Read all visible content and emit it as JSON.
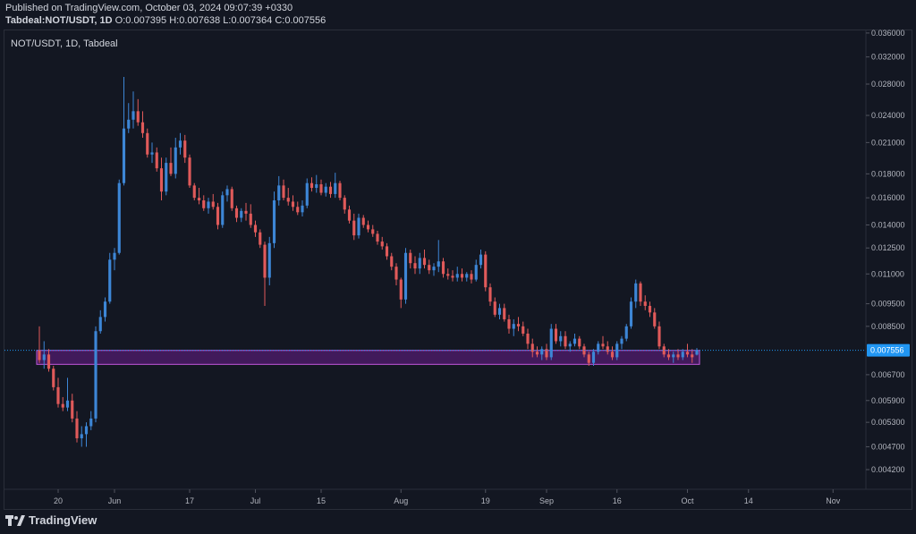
{
  "header": {
    "published": "Published on TradingView.com, October 03, 2024 09:07:39 +0330",
    "symbol": "Tabdeal:NOT/USDT, 1D",
    "o_label": "O:",
    "o_value": "0.007395",
    "h_label": "H:",
    "h_value": "0.007638",
    "l_label": "L:",
    "l_value": "0.007364",
    "c_label": "C:",
    "c_value": "0.007556"
  },
  "chart_label": "NOT/USDT, 1D, Tabdeal",
  "footer": {
    "brand": "TradingView"
  },
  "colors": {
    "background": "#131722",
    "up": "#2962ff",
    "up_body": "#3d86d6",
    "down": "#e05a5a",
    "zone_fill": "#7b1fa2",
    "zone_stroke": "#c158dc",
    "price_line": "#2196f3",
    "grid": "#2a2e39"
  },
  "chart_data": {
    "type": "candlestick",
    "symbol": "NOT/USDT",
    "interval": "1D",
    "exchange": "Tabdeal",
    "last_price": "0.007556",
    "y_scale": "log",
    "y_ticks": [
      "0.036000",
      "0.032000",
      "0.028000",
      "0.024000",
      "0.021000",
      "0.018000",
      "0.016000",
      "0.014000",
      "0.012500",
      "0.011000",
      "0.009500",
      "0.008500",
      "0.006700",
      "0.005900",
      "0.005300",
      "0.004700",
      "0.004200"
    ],
    "x_ticks": [
      "20",
      "Jun",
      "17",
      "Jul",
      "15",
      "Aug",
      "19",
      "Sep",
      "16",
      "Oct",
      "14",
      "Nov"
    ],
    "x_tick_dates": [
      "2024-05-20",
      "2024-06-01",
      "2024-06-17",
      "2024-07-01",
      "2024-07-15",
      "2024-08-01",
      "2024-08-19",
      "2024-09-01",
      "2024-09-16",
      "2024-10-01",
      "2024-10-14",
      "2024-11-01"
    ],
    "zone": {
      "from": "2024-05-16",
      "to": "2024-10-03",
      "top": 0.00755,
      "bottom": 0.00705
    },
    "candles": [
      [
        "2024-05-16",
        0.00755,
        0.0085,
        0.0071,
        0.0072
      ],
      [
        "2024-05-17",
        0.0072,
        0.0079,
        0.0069,
        0.0074
      ],
      [
        "2024-05-18",
        0.0074,
        0.0076,
        0.0068,
        0.0069
      ],
      [
        "2024-05-19",
        0.0069,
        0.007,
        0.0062,
        0.0063
      ],
      [
        "2024-05-20",
        0.0063,
        0.0066,
        0.0057,
        0.0058
      ],
      [
        "2024-05-21",
        0.0058,
        0.006,
        0.0056,
        0.0057
      ],
      [
        "2024-05-22",
        0.0057,
        0.0066,
        0.0056,
        0.0059
      ],
      [
        "2024-05-23",
        0.0059,
        0.0061,
        0.0053,
        0.0054
      ],
      [
        "2024-05-24",
        0.0054,
        0.0056,
        0.0048,
        0.0049
      ],
      [
        "2024-05-25",
        0.0049,
        0.0052,
        0.0047,
        0.005
      ],
      [
        "2024-05-26",
        0.005,
        0.0053,
        0.0047,
        0.0052
      ],
      [
        "2024-05-27",
        0.0052,
        0.0056,
        0.0051,
        0.0054
      ],
      [
        "2024-05-28",
        0.0054,
        0.0085,
        0.0053,
        0.0083
      ],
      [
        "2024-05-29",
        0.0083,
        0.0092,
        0.0082,
        0.0089
      ],
      [
        "2024-05-30",
        0.0089,
        0.0098,
        0.0087,
        0.0096
      ],
      [
        "2024-05-31",
        0.0096,
        0.0122,
        0.0095,
        0.0118
      ],
      [
        "2024-06-01",
        0.0118,
        0.0125,
        0.0112,
        0.0122
      ],
      [
        "2024-06-02",
        0.0122,
        0.0175,
        0.0121,
        0.0172
      ],
      [
        "2024-06-03",
        0.0172,
        0.029,
        0.017,
        0.0225
      ],
      [
        "2024-06-04",
        0.0225,
        0.0255,
        0.022,
        0.0235
      ],
      [
        "2024-06-05",
        0.0235,
        0.027,
        0.0225,
        0.0245
      ],
      [
        "2024-06-06",
        0.0245,
        0.026,
        0.0228,
        0.0232
      ],
      [
        "2024-06-07",
        0.0232,
        0.0245,
        0.0215,
        0.022
      ],
      [
        "2024-06-08",
        0.022,
        0.0225,
        0.0195,
        0.0198
      ],
      [
        "2024-06-09",
        0.0198,
        0.021,
        0.019,
        0.02
      ],
      [
        "2024-06-10",
        0.02,
        0.0205,
        0.0182,
        0.0185
      ],
      [
        "2024-06-11",
        0.0185,
        0.0195,
        0.0158,
        0.0165
      ],
      [
        "2024-06-12",
        0.0165,
        0.0195,
        0.0162,
        0.019
      ],
      [
        "2024-06-13",
        0.019,
        0.0205,
        0.0178,
        0.018
      ],
      [
        "2024-06-14",
        0.018,
        0.0215,
        0.0176,
        0.0205
      ],
      [
        "2024-06-15",
        0.0205,
        0.022,
        0.0198,
        0.0212
      ],
      [
        "2024-06-16",
        0.0212,
        0.0218,
        0.019,
        0.0195
      ],
      [
        "2024-06-17",
        0.0195,
        0.0198,
        0.0168,
        0.017
      ],
      [
        "2024-06-18",
        0.017,
        0.0172,
        0.0158,
        0.016
      ],
      [
        "2024-06-19",
        0.016,
        0.0168,
        0.0155,
        0.0158
      ],
      [
        "2024-06-20",
        0.0158,
        0.0162,
        0.015,
        0.0152
      ],
      [
        "2024-06-21",
        0.0152,
        0.016,
        0.0148,
        0.0157
      ],
      [
        "2024-06-22",
        0.0157,
        0.0163,
        0.0151,
        0.0153
      ],
      [
        "2024-06-23",
        0.0153,
        0.0156,
        0.0137,
        0.014
      ],
      [
        "2024-06-24",
        0.014,
        0.0165,
        0.0138,
        0.0162
      ],
      [
        "2024-06-25",
        0.0162,
        0.017,
        0.0157,
        0.0167
      ],
      [
        "2024-06-26",
        0.0167,
        0.0169,
        0.015,
        0.0152
      ],
      [
        "2024-06-27",
        0.0152,
        0.0154,
        0.0142,
        0.0145
      ],
      [
        "2024-06-28",
        0.0145,
        0.0152,
        0.0142,
        0.015
      ],
      [
        "2024-06-29",
        0.015,
        0.0156,
        0.0143,
        0.0148
      ],
      [
        "2024-06-30",
        0.0148,
        0.0155,
        0.0138,
        0.014
      ],
      [
        "2024-07-01",
        0.014,
        0.0143,
        0.0132,
        0.0135
      ],
      [
        "2024-07-02",
        0.0135,
        0.0137,
        0.0125,
        0.0127
      ],
      [
        "2024-07-03",
        0.0127,
        0.0129,
        0.0094,
        0.0108
      ],
      [
        "2024-07-04",
        0.0108,
        0.0132,
        0.0104,
        0.0128
      ],
      [
        "2024-07-05",
        0.0128,
        0.0165,
        0.0125,
        0.0158
      ],
      [
        "2024-07-06",
        0.0158,
        0.0178,
        0.0154,
        0.017
      ],
      [
        "2024-07-07",
        0.017,
        0.0175,
        0.0158,
        0.016
      ],
      [
        "2024-07-08",
        0.016,
        0.0168,
        0.0154,
        0.0157
      ],
      [
        "2024-07-09",
        0.0157,
        0.0162,
        0.015,
        0.0153
      ],
      [
        "2024-07-10",
        0.0153,
        0.0157,
        0.0147,
        0.0149
      ],
      [
        "2024-07-11",
        0.0149,
        0.0158,
        0.0146,
        0.0154
      ],
      [
        "2024-07-12",
        0.0154,
        0.0176,
        0.0152,
        0.0172
      ],
      [
        "2024-07-13",
        0.0172,
        0.0177,
        0.0165,
        0.0168
      ],
      [
        "2024-07-14",
        0.0168,
        0.0179,
        0.0164,
        0.0171
      ],
      [
        "2024-07-15",
        0.0171,
        0.0175,
        0.0162,
        0.0164
      ],
      [
        "2024-07-16",
        0.0164,
        0.0172,
        0.0161,
        0.0169
      ],
      [
        "2024-07-17",
        0.0169,
        0.0173,
        0.016,
        0.0163
      ],
      [
        "2024-07-18",
        0.0163,
        0.0181,
        0.016,
        0.0172
      ],
      [
        "2024-07-19",
        0.0172,
        0.0174,
        0.0158,
        0.016
      ],
      [
        "2024-07-20",
        0.016,
        0.0162,
        0.0148,
        0.0151
      ],
      [
        "2024-07-21",
        0.0151,
        0.0154,
        0.0141,
        0.0143
      ],
      [
        "2024-07-22",
        0.0143,
        0.0148,
        0.013,
        0.0133
      ],
      [
        "2024-07-23",
        0.0133,
        0.0148,
        0.0131,
        0.0145
      ],
      [
        "2024-07-24",
        0.0145,
        0.0147,
        0.0138,
        0.014
      ],
      [
        "2024-07-25",
        0.014,
        0.0143,
        0.0135,
        0.0137
      ],
      [
        "2024-07-26",
        0.0137,
        0.014,
        0.0132,
        0.0134
      ],
      [
        "2024-07-27",
        0.0134,
        0.0136,
        0.0127,
        0.0129
      ],
      [
        "2024-07-28",
        0.0129,
        0.0132,
        0.0124,
        0.0126
      ],
      [
        "2024-07-29",
        0.0126,
        0.0128,
        0.0118,
        0.012
      ],
      [
        "2024-07-30",
        0.012,
        0.0122,
        0.0112,
        0.0114
      ],
      [
        "2024-07-31",
        0.0114,
        0.0116,
        0.0104,
        0.0107
      ],
      [
        "2024-08-01",
        0.0107,
        0.0108,
        0.0093,
        0.0097
      ],
      [
        "2024-08-02",
        0.0097,
        0.0125,
        0.0095,
        0.0122
      ],
      [
        "2024-08-03",
        0.0122,
        0.0124,
        0.0113,
        0.0116
      ],
      [
        "2024-08-04",
        0.0116,
        0.012,
        0.011,
        0.0113
      ],
      [
        "2024-08-05",
        0.0113,
        0.0122,
        0.011,
        0.0119
      ],
      [
        "2024-08-06",
        0.0119,
        0.0124,
        0.0113,
        0.0115
      ],
      [
        "2024-08-07",
        0.0115,
        0.0118,
        0.011,
        0.0112
      ],
      [
        "2024-08-08",
        0.0112,
        0.0116,
        0.0109,
        0.0114
      ],
      [
        "2024-08-09",
        0.0114,
        0.013,
        0.0111,
        0.0117
      ],
      [
        "2024-08-10",
        0.0117,
        0.0119,
        0.0108,
        0.011
      ],
      [
        "2024-08-11",
        0.011,
        0.0113,
        0.0107,
        0.0109
      ],
      [
        "2024-08-12",
        0.0109,
        0.0112,
        0.0106,
        0.0108
      ],
      [
        "2024-08-13",
        0.0108,
        0.0114,
        0.0106,
        0.011
      ],
      [
        "2024-08-14",
        0.011,
        0.0113,
        0.0106,
        0.0108
      ],
      [
        "2024-08-15",
        0.0108,
        0.0111,
        0.0106,
        0.011
      ],
      [
        "2024-08-16",
        0.011,
        0.0112,
        0.0105,
        0.0107
      ],
      [
        "2024-08-17",
        0.0107,
        0.0118,
        0.0106,
        0.0115
      ],
      [
        "2024-08-18",
        0.0115,
        0.0124,
        0.0113,
        0.0121
      ],
      [
        "2024-08-19",
        0.0121,
        0.0123,
        0.0101,
        0.0103
      ],
      [
        "2024-08-20",
        0.0103,
        0.0105,
        0.0094,
        0.0096
      ],
      [
        "2024-08-21",
        0.0096,
        0.0098,
        0.0089,
        0.009
      ],
      [
        "2024-08-22",
        0.009,
        0.0095,
        0.0088,
        0.0093
      ],
      [
        "2024-08-23",
        0.0093,
        0.0095,
        0.0087,
        0.0088
      ],
      [
        "2024-08-24",
        0.0088,
        0.009,
        0.0082,
        0.0084
      ],
      [
        "2024-08-25",
        0.0084,
        0.0088,
        0.0081,
        0.0086
      ],
      [
        "2024-08-26",
        0.0086,
        0.0089,
        0.0083,
        0.0085
      ],
      [
        "2024-08-27",
        0.0085,
        0.0087,
        0.0081,
        0.0082
      ],
      [
        "2024-08-28",
        0.0082,
        0.0084,
        0.0076,
        0.0078
      ],
      [
        "2024-08-29",
        0.0078,
        0.008,
        0.0073,
        0.0075
      ],
      [
        "2024-08-30",
        0.0075,
        0.0077,
        0.0073,
        0.0074
      ],
      [
        "2024-08-31",
        0.0074,
        0.0077,
        0.0072,
        0.0076
      ],
      [
        "2024-09-01",
        0.0076,
        0.0078,
        0.0072,
        0.0073
      ],
      [
        "2024-09-02",
        0.0073,
        0.0086,
        0.0072,
        0.0084
      ],
      [
        "2024-09-03",
        0.0084,
        0.0086,
        0.0078,
        0.0079
      ],
      [
        "2024-09-04",
        0.0079,
        0.0083,
        0.0077,
        0.0081
      ],
      [
        "2024-09-05",
        0.0081,
        0.0083,
        0.0076,
        0.0077
      ],
      [
        "2024-09-06",
        0.0077,
        0.0079,
        0.0075,
        0.0078
      ],
      [
        "2024-09-07",
        0.0078,
        0.0082,
        0.0077,
        0.008
      ],
      [
        "2024-09-08",
        0.008,
        0.0081,
        0.0076,
        0.0077
      ],
      [
        "2024-09-09",
        0.0077,
        0.0078,
        0.0073,
        0.0074
      ],
      [
        "2024-09-10",
        0.0074,
        0.0075,
        0.007,
        0.0071
      ],
      [
        "2024-09-11",
        0.0071,
        0.0076,
        0.007,
        0.0075
      ],
      [
        "2024-09-12",
        0.0075,
        0.0079,
        0.0074,
        0.0078
      ],
      [
        "2024-09-13",
        0.0078,
        0.0081,
        0.0076,
        0.0077
      ],
      [
        "2024-09-14",
        0.0077,
        0.0079,
        0.0074,
        0.0075
      ],
      [
        "2024-09-15",
        0.0075,
        0.0077,
        0.0072,
        0.0073
      ],
      [
        "2024-09-16",
        0.0073,
        0.0079,
        0.0072,
        0.0078
      ],
      [
        "2024-09-17",
        0.0078,
        0.0081,
        0.0076,
        0.008
      ],
      [
        "2024-09-18",
        0.008,
        0.0086,
        0.0079,
        0.0085
      ],
      [
        "2024-09-19",
        0.0085,
        0.0098,
        0.0084,
        0.0096
      ],
      [
        "2024-09-20",
        0.0096,
        0.0107,
        0.0093,
        0.0105
      ],
      [
        "2024-09-21",
        0.0105,
        0.0106,
        0.0094,
        0.0096
      ],
      [
        "2024-09-22",
        0.0096,
        0.0099,
        0.0092,
        0.0094
      ],
      [
        "2024-09-23",
        0.0094,
        0.0096,
        0.0089,
        0.0091
      ],
      [
        "2024-09-24",
        0.0091,
        0.0093,
        0.0084,
        0.0085
      ],
      [
        "2024-09-25",
        0.0085,
        0.0087,
        0.0076,
        0.0077
      ],
      [
        "2024-09-26",
        0.0077,
        0.0078,
        0.0073,
        0.0074
      ],
      [
        "2024-09-27",
        0.0074,
        0.0076,
        0.0072,
        0.0073
      ],
      [
        "2024-09-28",
        0.0073,
        0.0075,
        0.0071,
        0.0074
      ],
      [
        "2024-09-29",
        0.0074,
        0.0076,
        0.0072,
        0.0073
      ],
      [
        "2024-09-30",
        0.0073,
        0.0076,
        0.0072,
        0.0075
      ],
      [
        "2024-10-01",
        0.0075,
        0.0078,
        0.0073,
        0.0074
      ],
      [
        "2024-10-02",
        0.0074,
        0.0076,
        0.0071,
        0.0073
      ],
      [
        "2024-10-03",
        0.007395,
        0.007638,
        0.007364,
        0.007556
      ]
    ]
  }
}
